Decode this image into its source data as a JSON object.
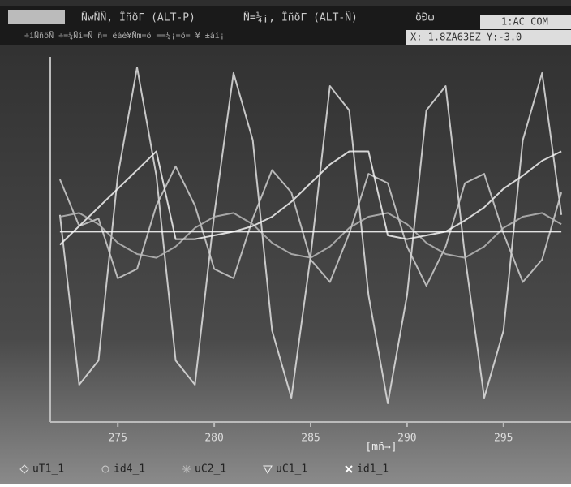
{
  "chart_data": {
    "type": "line",
    "annotations": [
      "ÑwÑÑ, ÏñðΓ (ALT-P)",
      "Ñ=¼¡, ÏñðΓ (ALT-Ñ)",
      "ðÐω",
      "1:AC COM",
      "÷ìÑñöÑ ÷=¼Ñí=Ñ ñ= ëáé¥Ñm=ô ==¼¡=ö= ¥ ±áí¡",
      "X: 1.8ZA63EZ Y:-3.0"
    ],
    "x_label": "[mñ→]",
    "x": [
      272,
      273,
      274,
      275,
      276,
      277,
      278,
      279,
      280,
      281,
      282,
      283,
      284,
      285,
      286,
      287,
      288,
      289,
      290,
      291,
      292,
      293,
      294,
      295,
      296,
      297,
      298
    ],
    "xlim": [
      271.5,
      298.5
    ],
    "xticks": [
      275,
      280,
      285,
      290,
      295
    ],
    "ylim": [
      -1,
      1
    ],
    "series": [
      {
        "name": "uT1_1",
        "color": "#e0e0e0",
        "values": [
          0.11,
          -0.8,
          -0.67,
          0.32,
          0.9,
          0.32,
          -0.67,
          -0.8,
          0.11,
          0.87,
          0.51,
          -0.51,
          -0.87,
          -0.11,
          0.8,
          0.67,
          -0.32,
          -0.9,
          -0.32,
          0.67,
          0.8,
          -0.11,
          -0.87,
          -0.51,
          0.51,
          0.87,
          0.11
        ]
      },
      {
        "name": "id4_1",
        "color": "#cfcfcf",
        "values": [
          0.3,
          0.05,
          0.09,
          -0.23,
          -0.18,
          0.16,
          0.37,
          0.16,
          -0.18,
          -0.23,
          0.09,
          0.35,
          0.23,
          -0.13,
          -0.25,
          0.01,
          0.33,
          0.28,
          -0.06,
          -0.27,
          -0.06,
          0.28,
          0.33,
          0.01,
          -0.25,
          -0.13,
          0.23
        ]
      },
      {
        "name": "uC2_1",
        "color": "#b8b8b8",
        "values": [
          0.1,
          0.12,
          0.06,
          -0.04,
          -0.1,
          -0.12,
          -0.06,
          0.04,
          0.1,
          0.12,
          0.06,
          -0.04,
          -0.1,
          -0.12,
          -0.06,
          0.04,
          0.1,
          0.12,
          0.06,
          -0.04,
          -0.1,
          -0.12,
          -0.06,
          0.04,
          0.1,
          0.12,
          0.06
        ]
      },
      {
        "name": "uC1_1",
        "color": "#f2f2f2",
        "values": [
          -0.05,
          0.05,
          0.15,
          0.25,
          0.35,
          0.45,
          -0.02,
          -0.02,
          0,
          0.02,
          0.05,
          0.1,
          0.18,
          0.28,
          0.38,
          0.45,
          0.45,
          0,
          -0.02,
          0,
          0.02,
          0.08,
          0.15,
          0.25,
          0.32,
          0.4,
          0.45
        ]
      },
      {
        "name": "id1_1",
        "color": "#ffffff",
        "values": [
          0.02,
          0.02,
          0.02,
          0.02,
          0.02,
          0.02,
          0.02,
          0.02,
          0.02,
          0.02,
          0.02,
          0.02,
          0.02,
          0.02,
          0.02,
          0.02,
          0.02,
          0.02,
          0.02,
          0.02,
          0.02,
          0.02,
          0.02,
          0.02,
          0.02,
          0.02,
          0.02
        ]
      }
    ]
  }
}
